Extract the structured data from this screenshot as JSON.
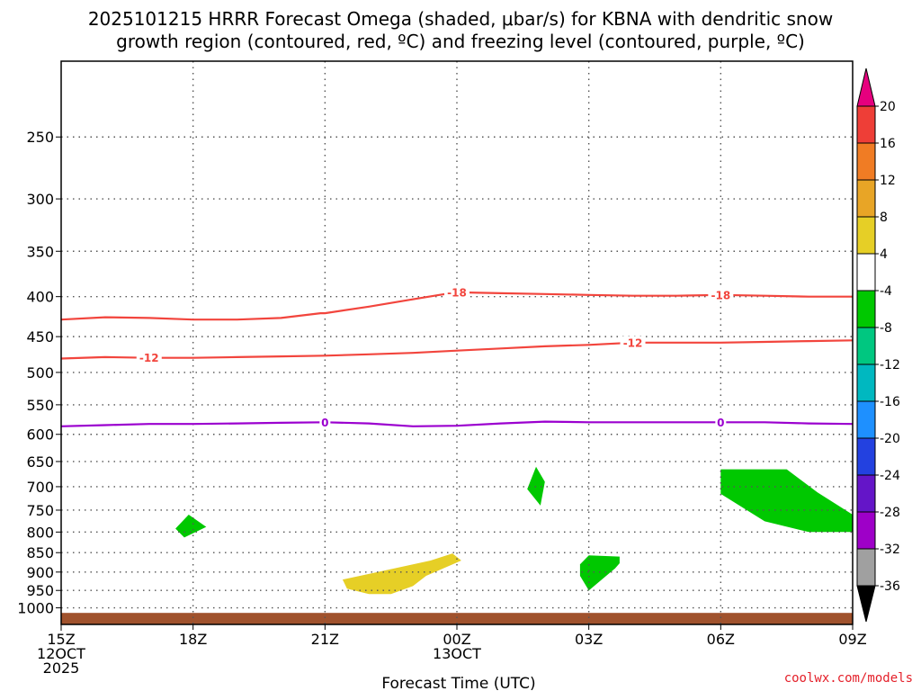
{
  "title_line1": "2025101215 HRRR Forecast Omega (shaded, μbar/s) for KBNA with dendritic snow",
  "title_line2": "growth region (contoured, red, ºC) and freezing level (contoured, purple, ºC)",
  "credit": "coolwx.com/models",
  "colors": {
    "temp_contour": "#f2453d",
    "freezing_contour": "#9b00cf",
    "terrain": "#a0522d",
    "grid": "#555555"
  },
  "chart_data": {
    "type": "contour",
    "title": "2025101215 HRRR Forecast Omega (shaded, μbar/s) for KBNA with dendritic snow growth region (contoured, red, ºC) and freezing level (contoured, purple, ºC)",
    "xlabel": "Forecast Time (UTC)",
    "ylabel": "",
    "x_range_hours": [
      0,
      18
    ],
    "x_ticks": [
      {
        "hour": 0,
        "lines": [
          "15Z",
          "12OCT",
          "2025"
        ]
      },
      {
        "hour": 3,
        "lines": [
          "18Z"
        ]
      },
      {
        "hour": 6,
        "lines": [
          "21Z"
        ]
      },
      {
        "hour": 9,
        "lines": [
          "00Z",
          "13OCT"
        ]
      },
      {
        "hour": 12,
        "lines": [
          "03Z"
        ]
      },
      {
        "hour": 15,
        "lines": [
          "06Z"
        ]
      },
      {
        "hour": 18,
        "lines": [
          "09Z"
        ]
      }
    ],
    "y_axis": "pressure_hPa_log",
    "y_range_hpa": [
      1050,
      200
    ],
    "y_ticks": [
      250,
      300,
      350,
      400,
      450,
      500,
      550,
      600,
      650,
      700,
      750,
      800,
      850,
      900,
      950,
      1000
    ],
    "temperature_contours": [
      {
        "value": -18,
        "label": "-18",
        "label_hours": [
          9,
          15
        ],
        "points": [
          [
            0,
            428
          ],
          [
            1,
            425
          ],
          [
            2,
            426
          ],
          [
            3,
            428
          ],
          [
            4,
            428
          ],
          [
            5,
            426
          ],
          [
            5.9,
            420
          ],
          [
            6,
            420
          ],
          [
            7,
            412
          ],
          [
            7.9,
            404
          ],
          [
            8.6,
            398
          ],
          [
            9,
            395
          ],
          [
            10,
            396
          ],
          [
            11,
            397
          ],
          [
            12,
            398
          ],
          [
            13,
            399
          ],
          [
            14,
            399
          ],
          [
            15,
            398
          ],
          [
            16,
            399
          ],
          [
            17,
            400
          ],
          [
            18,
            400
          ]
        ]
      },
      {
        "value": -12,
        "label": "-12",
        "label_hours": [
          2,
          13
        ],
        "points": [
          [
            0,
            480
          ],
          [
            1,
            478
          ],
          [
            2,
            479
          ],
          [
            3,
            479
          ],
          [
            4,
            478
          ],
          [
            5,
            477
          ],
          [
            6,
            476
          ],
          [
            7,
            474
          ],
          [
            8,
            472
          ],
          [
            9,
            469
          ],
          [
            10,
            466
          ],
          [
            11,
            463
          ],
          [
            12,
            461
          ],
          [
            13,
            458
          ],
          [
            14,
            458
          ],
          [
            15,
            458
          ],
          [
            16,
            457
          ],
          [
            17,
            456
          ],
          [
            18,
            455
          ]
        ]
      }
    ],
    "freezing_level_contour": {
      "value": 0,
      "label": "0",
      "label_hours": [
        6,
        15
      ],
      "points": [
        [
          0,
          586
        ],
        [
          1,
          584
        ],
        [
          2,
          582
        ],
        [
          3,
          582
        ],
        [
          4,
          581
        ],
        [
          5,
          580
        ],
        [
          6,
          579
        ],
        [
          7,
          581
        ],
        [
          8,
          586
        ],
        [
          9,
          585
        ],
        [
          10,
          581
        ],
        [
          11,
          578
        ],
        [
          12,
          579
        ],
        [
          13,
          579
        ],
        [
          14,
          579
        ],
        [
          15,
          579
        ],
        [
          16,
          579
        ],
        [
          17,
          581
        ],
        [
          18,
          582
        ]
      ]
    },
    "terrain_top_hpa": 1015,
    "omega_colorbar": {
      "tick_labels": [
        "20",
        "16",
        "12",
        "8",
        "4",
        "-4",
        "-8",
        "-12",
        "-16",
        "-20",
        "-24",
        "-28",
        "-32",
        "-36"
      ],
      "bins": [
        {
          "range": "16 to 20",
          "color": "#ee3e37"
        },
        {
          "range": "12 to 16",
          "color": "#f07c24"
        },
        {
          "range": "8 to 12",
          "color": "#e8a526"
        },
        {
          "range": "4 to 8",
          "color": "#e6cf26"
        },
        {
          "range": "-4 to 4",
          "color": "#ffffff"
        },
        {
          "range": "-8 to -4",
          "color": "#00c800"
        },
        {
          "range": "-12 to -8",
          "color": "#00c780"
        },
        {
          "range": "-16 to -12",
          "color": "#00b8c0"
        },
        {
          "range": "-20 to -16",
          "color": "#1e90ff"
        },
        {
          "range": "-24 to -20",
          "color": "#2341e0"
        },
        {
          "range": "-28 to -24",
          "color": "#6415c8"
        },
        {
          "range": "-32 to -28",
          "color": "#9e00c8"
        },
        {
          "range": "-36 to -32",
          "color": "#a0a0a0"
        }
      ],
      "overflow_high_color": "#e6007e",
      "underflow_low_color": "#000000"
    },
    "omega_regions": [
      {
        "value_bin": "-8 to -4",
        "color": "#00c800",
        "points": [
          [
            2.9,
            760
          ],
          [
            3.3,
            788
          ],
          [
            2.8,
            813
          ],
          [
            2.6,
            792
          ]
        ]
      },
      {
        "value_bin": "-8 to -4",
        "color": "#00c800",
        "points": [
          [
            10.8,
            660
          ],
          [
            11.0,
            690
          ],
          [
            10.9,
            740
          ],
          [
            10.6,
            705
          ]
        ]
      },
      {
        "value_bin": "-8 to -4",
        "color": "#00c800",
        "points": [
          [
            15.0,
            665
          ],
          [
            16.5,
            665
          ],
          [
            17.2,
            712
          ],
          [
            18.0,
            760
          ],
          [
            18.0,
            800
          ],
          [
            17.0,
            800
          ],
          [
            16.0,
            775
          ],
          [
            15.0,
            715
          ]
        ]
      },
      {
        "value_bin": "-8 to -4",
        "color": "#00c800",
        "points": [
          [
            12.0,
            857
          ],
          [
            12.7,
            860
          ],
          [
            12.7,
            877
          ],
          [
            12.6,
            890
          ],
          [
            12.0,
            950
          ],
          [
            11.8,
            910
          ],
          [
            11.8,
            880
          ]
        ]
      },
      {
        "value_bin": "4 to 8",
        "color": "#e6cf26",
        "points": [
          [
            8.4,
            870
          ],
          [
            8.9,
            852
          ],
          [
            9.1,
            870
          ],
          [
            8.3,
            910
          ],
          [
            8.0,
            938
          ],
          [
            7.5,
            960
          ],
          [
            7.0,
            960
          ],
          [
            6.5,
            945
          ],
          [
            6.4,
            920
          ],
          [
            7.2,
            900
          ]
        ]
      }
    ]
  }
}
